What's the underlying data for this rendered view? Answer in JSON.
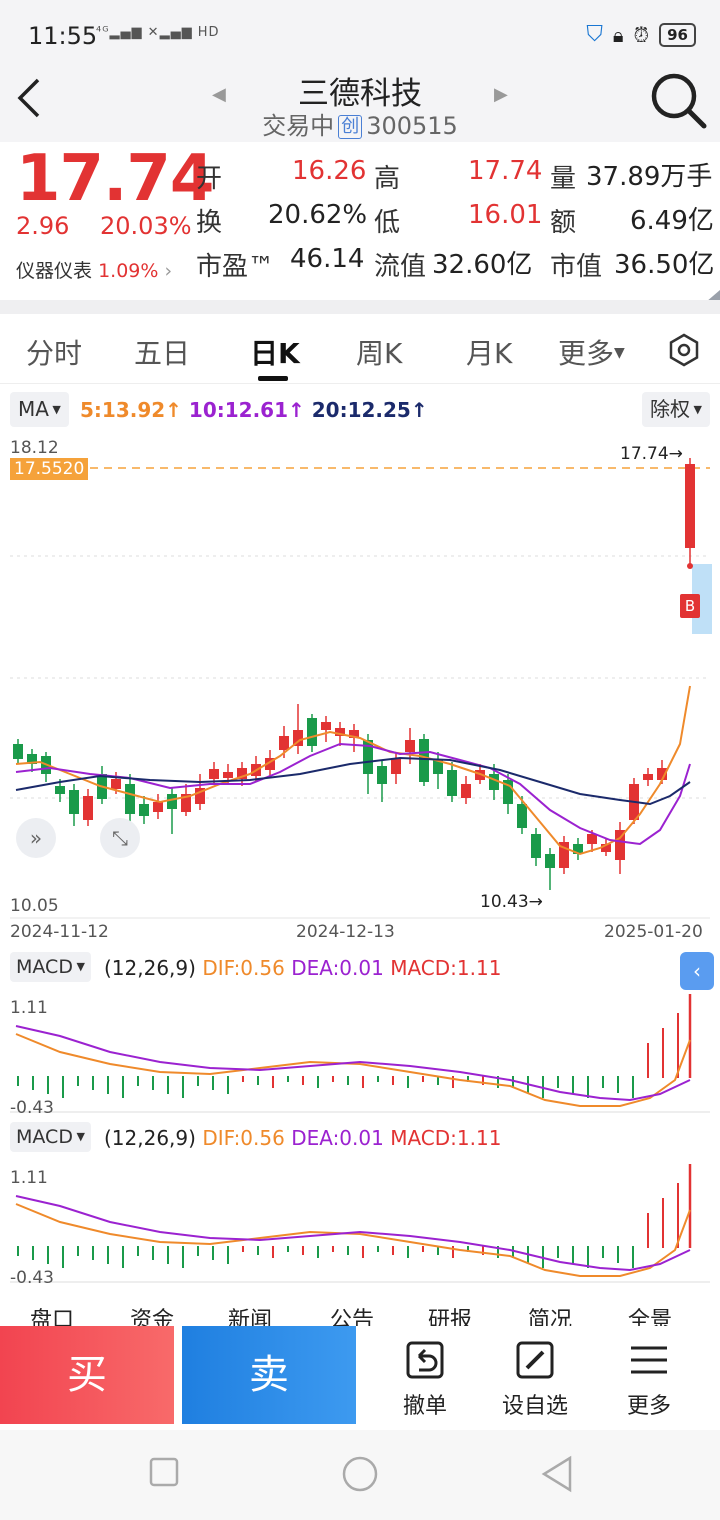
{
  "status_bar": {
    "time": "11:55",
    "signal": "4G",
    "hd": "HD",
    "battery": "96"
  },
  "header": {
    "title": "三德科技",
    "status": "交易中",
    "board_tag": "创",
    "code": "300515"
  },
  "quote": {
    "price": "17.74",
    "change": "2.96",
    "change_pct": "20.03%",
    "sector": "仪器仪表",
    "sector_pct": "1.09%",
    "open_label": "开",
    "open": "16.26",
    "high_label": "高",
    "high": "17.74",
    "vol_label": "量",
    "vol": "37.89万手",
    "turnover_label": "换",
    "turnover": "20.62%",
    "low_label": "低",
    "low": "16.01",
    "amount_label": "额",
    "amount": "6.49亿",
    "pe_label": "市盈™",
    "pe": "46.14",
    "float_label": "流值",
    "float_cap": "32.60亿",
    "cap_label": "市值",
    "market_cap": "36.50亿"
  },
  "tabs": [
    "分时",
    "五日",
    "日K",
    "周K",
    "月K",
    "更多"
  ],
  "active_tab": "日K",
  "ma_bar": {
    "selector": "MA",
    "ma5": "5:13.92↑",
    "ma10": "10:12.61↑",
    "ma20": "20:12.25↑",
    "adjust": "除权"
  },
  "kchart": {
    "top_price": "18.12",
    "bottom_price": "10.05",
    "ref_price": "17.5520",
    "high_marker": "17.74→",
    "low_marker": "10.43→",
    "buy_marker": "B",
    "dates": [
      "2024-11-12",
      "2024-12-13",
      "2025-01-20"
    ]
  },
  "macd_panels": [
    {
      "selector": "MACD",
      "params": "(12,26,9)",
      "dif": "DIF:0.56",
      "dea": "DEA:0.01",
      "macd": "MACD:1.11",
      "top": "1.11",
      "bottom": "-0.43"
    },
    {
      "selector": "MACD",
      "params": "(12,26,9)",
      "dif": "DIF:0.56",
      "dea": "DEA:0.01",
      "macd": "MACD:1.11",
      "top": "1.11",
      "bottom": "-0.43"
    }
  ],
  "bottom_tabs_peek": [
    "盘口",
    "资金",
    "新闻",
    "公告",
    "研报",
    "简况",
    "全景"
  ],
  "actions": {
    "buy": "买",
    "sell": "卖",
    "cancel": "撤单",
    "watch": "设自选",
    "more": "更多"
  },
  "colors": {
    "up": "#e23333",
    "down": "#1a9a4a",
    "ma5": "#ef8a2b",
    "ma10": "#9b22d0",
    "ma20": "#1b2a6b"
  }
}
